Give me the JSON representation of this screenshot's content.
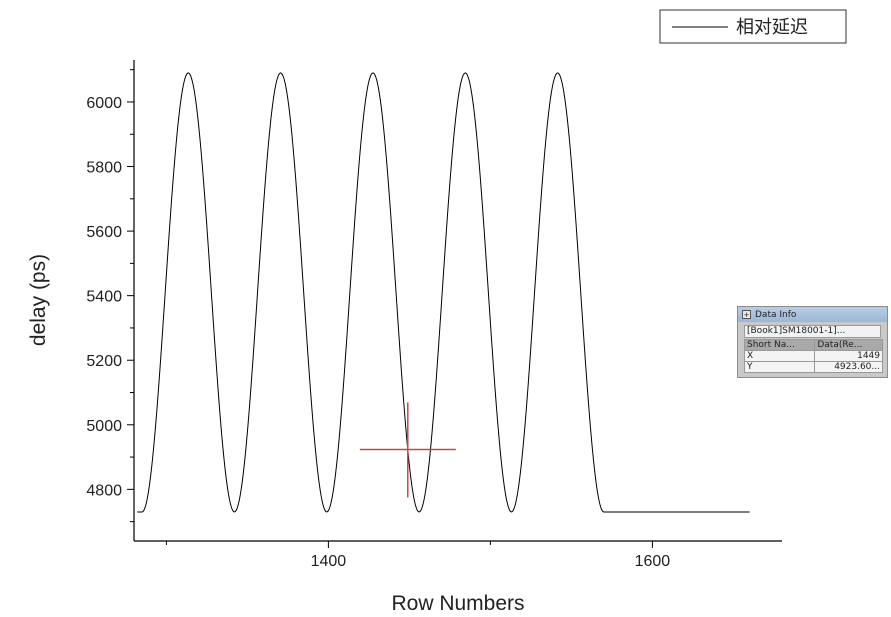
{
  "chart_data": {
    "type": "line",
    "title": "",
    "xlabel": "Row Numbers",
    "ylabel": "delay (ps)",
    "xlim": [
      1280,
      1680
    ],
    "ylim": [
      4640,
      6130
    ],
    "xticks": [
      1400,
      1600
    ],
    "xtick_labels": [
      "1400",
      "1600"
    ],
    "yticks": [
      4800,
      5000,
      5200,
      5400,
      5600,
      5800,
      6000
    ],
    "ytick_labels": [
      "4800",
      "5000",
      "5200",
      "5400",
      "5600",
      "5800",
      "6000"
    ],
    "legend": {
      "position": "top-right"
    },
    "grid": false,
    "series": [
      {
        "name": "相对延迟",
        "color": "#000000",
        "x_start": 1282,
        "x_end": 1660,
        "baseline": 4730,
        "peak": 6090,
        "oscillation_start": 1285,
        "oscillation_end": 1570,
        "period": 57,
        "peaks_x": [
          1313,
          1370,
          1427,
          1484,
          1541
        ],
        "troughs_x": [
          1342,
          1399,
          1456,
          1513
        ]
      }
    ],
    "annotations": {
      "crosshair": {
        "x": 1449,
        "y": 4923.6,
        "color": "#c04a4a"
      }
    }
  },
  "data_info": {
    "window_title": "Data Info",
    "source": "[Book1]SM18001-1]...",
    "header": [
      "Short Na...",
      "Data(Re..."
    ],
    "rows": [
      {
        "label": "X",
        "value": "1449"
      },
      {
        "label": "Y",
        "value": "4923.60..."
      }
    ]
  }
}
